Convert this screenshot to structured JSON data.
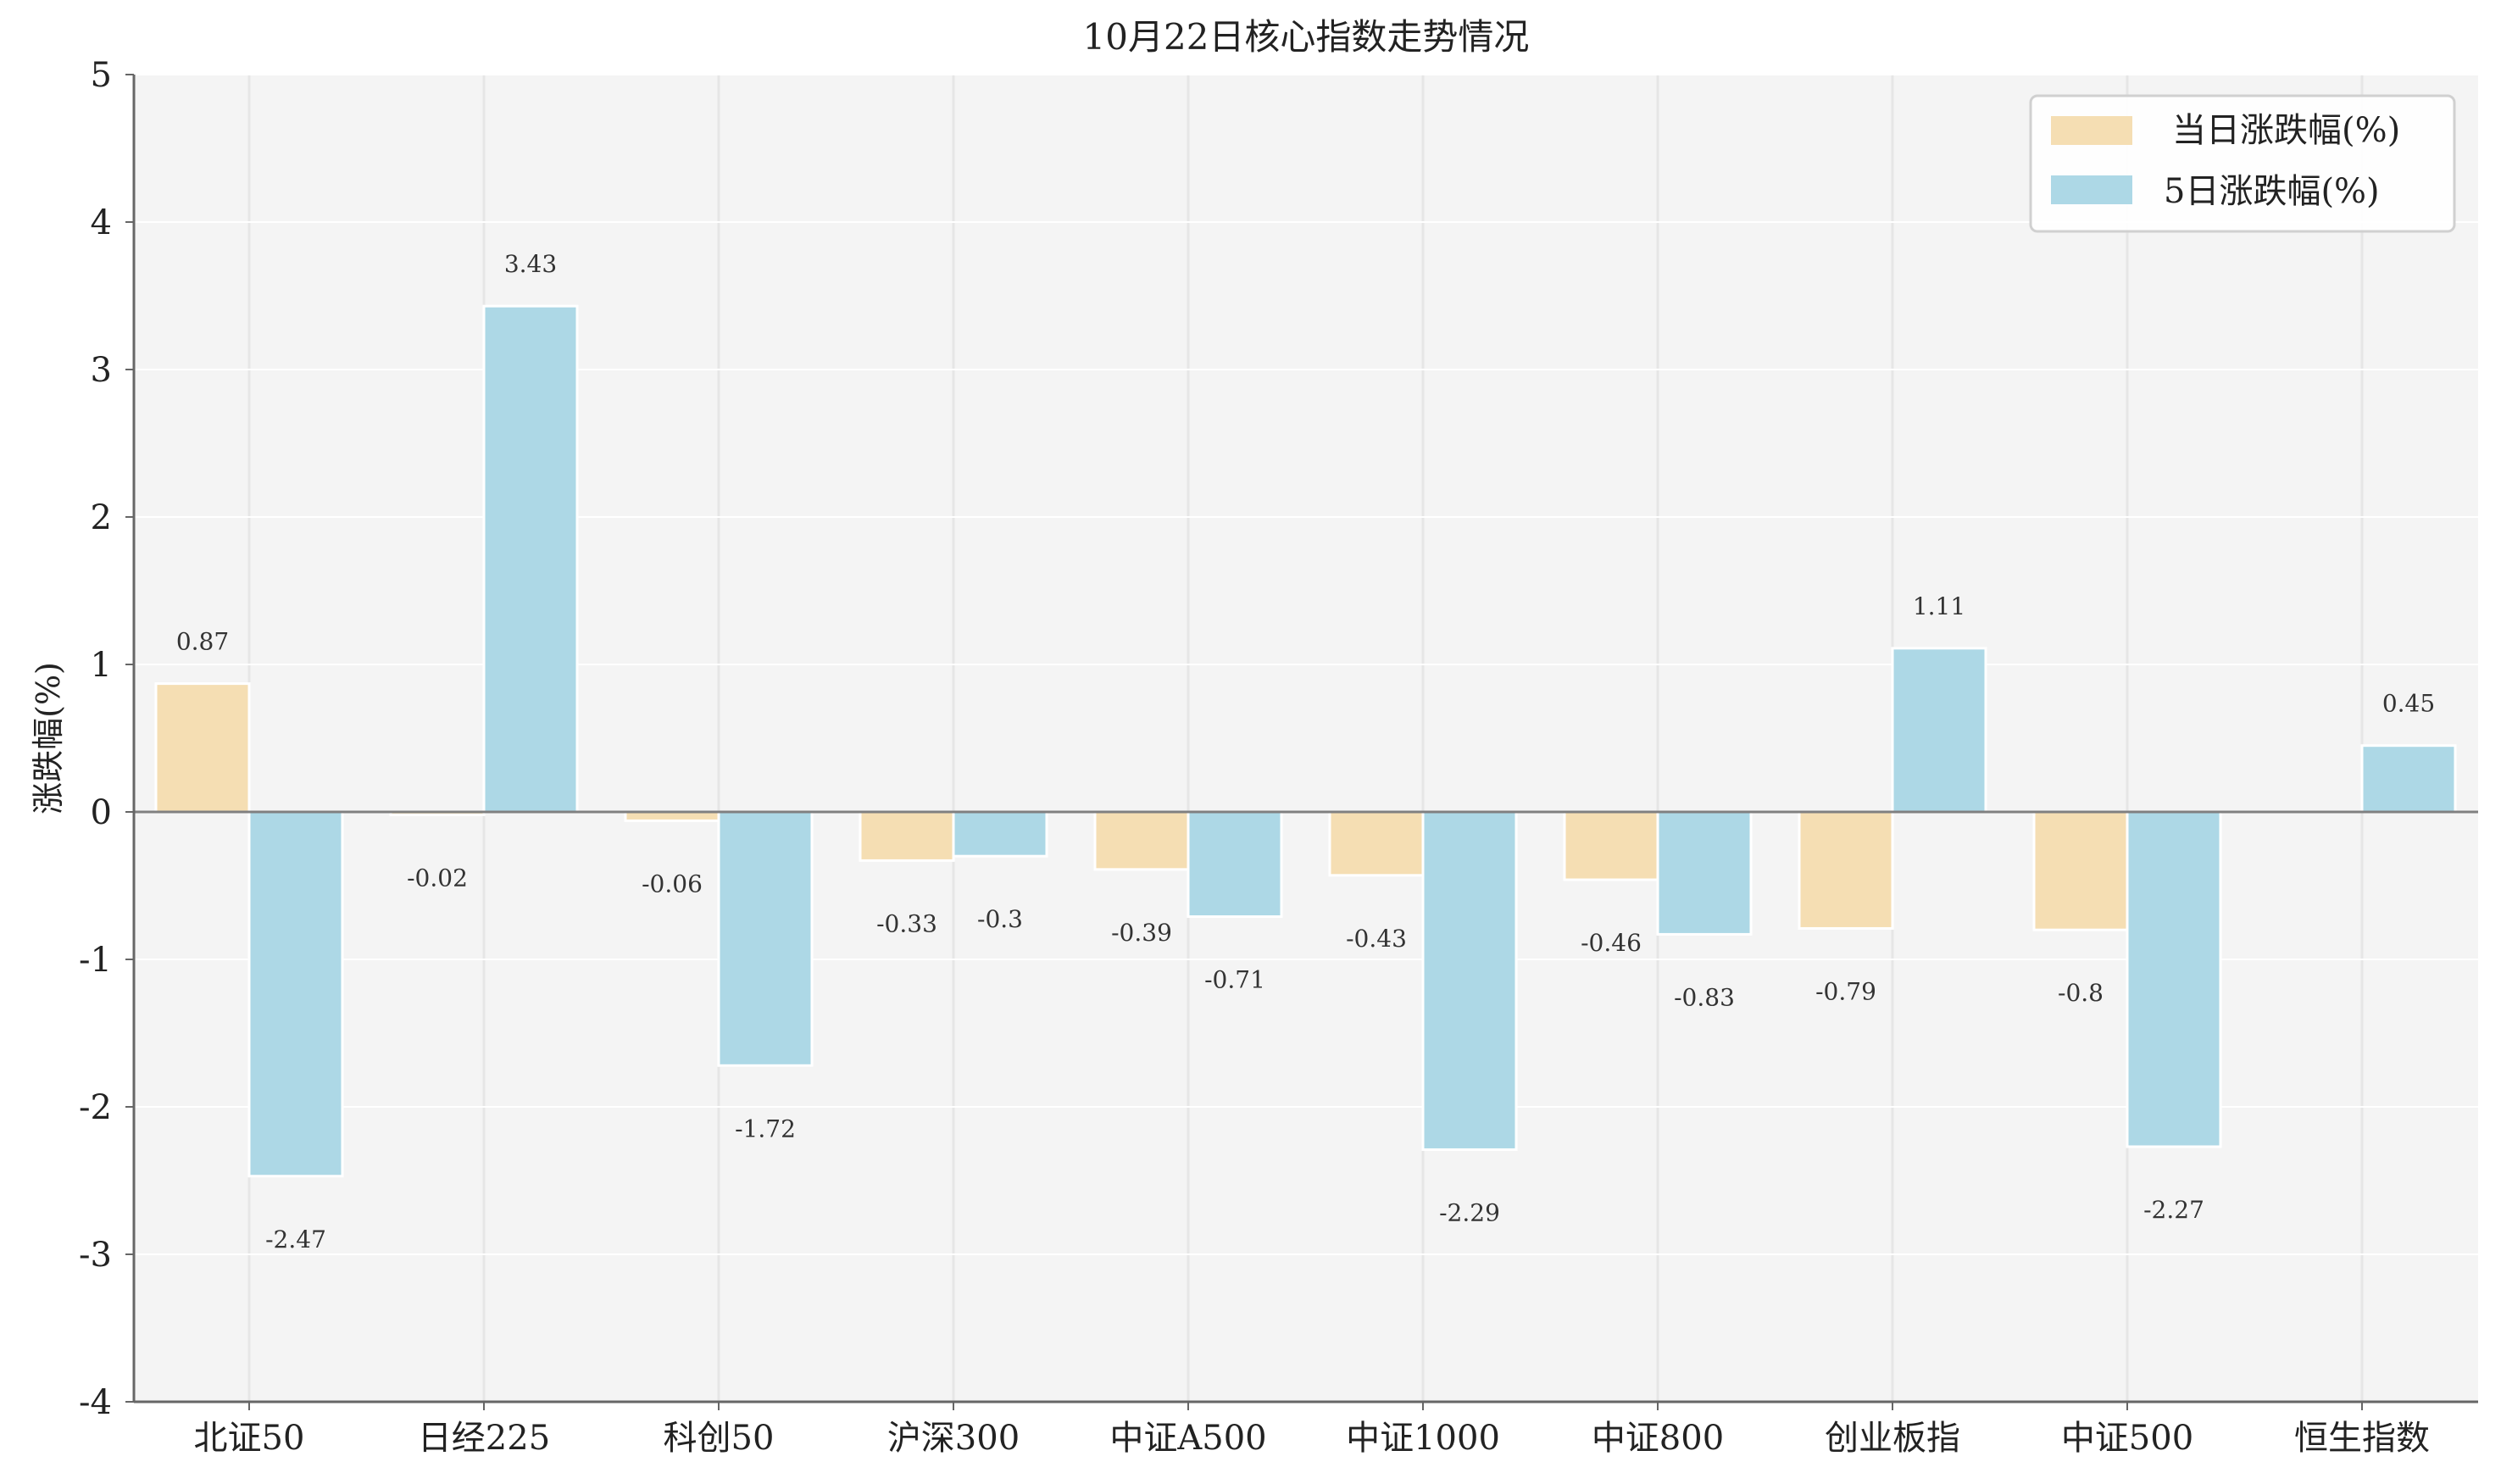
{
  "colors": {
    "daily": "#f5deb3",
    "five_day": "#add8e6",
    "plot_bg": "#f4f4f4",
    "grid": "#ffffff",
    "vgrid": "#e6e6e6",
    "axis": "#666666",
    "zero_line": "#808080"
  },
  "chart_data": {
    "type": "bar",
    "title": "10月22日核心指数走势情况",
    "xlabel": "",
    "ylabel": "涨跌幅(%)",
    "ylim": [
      -4,
      5
    ],
    "yticks": [
      "-4",
      "-3",
      "-2",
      "-1",
      "0",
      "1",
      "2",
      "3",
      "4",
      "5"
    ],
    "grid": true,
    "legend_position": "top-right",
    "categories": [
      "北证50",
      "日经225",
      "科创50",
      "沪深300",
      "中证A500",
      "中证1000",
      "中证800",
      "创业板指",
      "中证500",
      "恒生指数"
    ],
    "series": [
      {
        "name": "当日涨跌幅(%)",
        "color_key": "daily",
        "values": [
          0.87,
          -0.02,
          -0.06,
          -0.33,
          -0.39,
          -0.43,
          -0.46,
          -0.79,
          -0.8,
          null
        ],
        "labels": [
          "0.87",
          "-0.02",
          "-0.06",
          "-0.33",
          "-0.39",
          "-0.43",
          "-0.46",
          "-0.79",
          "-0.8",
          ""
        ]
      },
      {
        "name": "5日涨跌幅(%)",
        "color_key": "five_day",
        "values": [
          -2.47,
          3.43,
          -1.72,
          -0.3,
          -0.71,
          -2.29,
          -0.83,
          1.11,
          -2.27,
          0.45
        ],
        "labels": [
          "-2.47",
          "3.43",
          "-1.72",
          "-0.3",
          "-0.71",
          "-2.29",
          "-0.83",
          "1.11",
          "-2.27",
          "0.45"
        ]
      }
    ]
  }
}
